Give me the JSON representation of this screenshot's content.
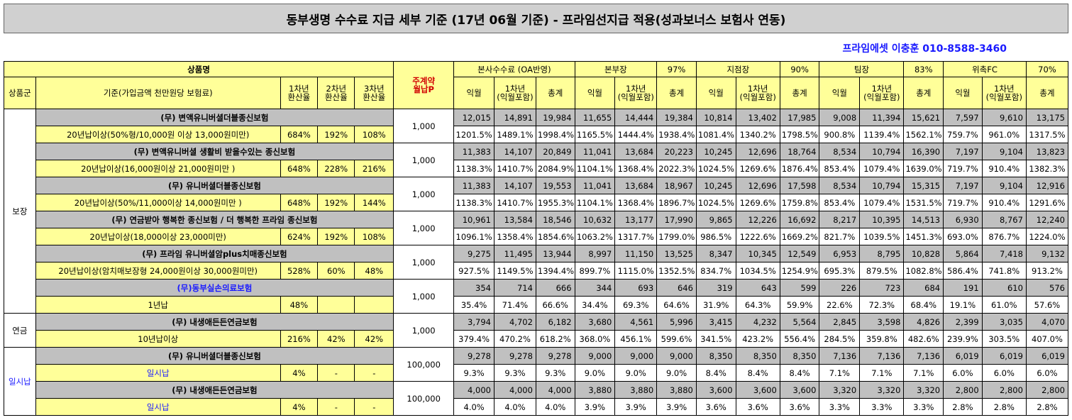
{
  "title": "동부생명 수수료 지급 세부 기준 (17년 06월 기준) - 프라임선지급 적용(성과보너스 보험사 연동)",
  "contact": "프라임에셋 이충훈 010-8588-3460",
  "header": {
    "product_name": "상품명",
    "product_group": "상품군",
    "basis": "기준(가입금액 천만원당 보험료)",
    "rate1": "1차년\n환산율",
    "rate2": "2차년\n환산율",
    "rate3": "3차년\n환산율",
    "main_contract": "주계약\n월납P",
    "sections": [
      {
        "name": "본사수수료 (OA반영)",
        "pct": ""
      },
      {
        "name": "본부장",
        "pct": "97%"
      },
      {
        "name": "지점장",
        "pct": "90%"
      },
      {
        "name": "팀장",
        "pct": "83%"
      },
      {
        "name": "위촉FC",
        "pct": "70%"
      }
    ],
    "sub_cols": [
      "익월",
      "1차년\n(익월포함)",
      "총계"
    ]
  },
  "groups": [
    {
      "name": "보장"
    },
    {
      "name": "연금"
    },
    {
      "name": "일시납"
    }
  ],
  "products": [
    {
      "name": "(무) 변액유니버셜더블종신보험",
      "basis": "20년납이상(50%형/10,000원 이상 13,000원미만)",
      "r1": "684%",
      "r2": "192%",
      "r3": "108%",
      "premium": "1,000",
      "amounts": [
        "12,015",
        "14,891",
        "19,984",
        "11,655",
        "14,444",
        "19,384",
        "10,814",
        "13,402",
        "17,985",
        "9,008",
        "11,394",
        "15,621",
        "7,597",
        "9,610",
        "13,175"
      ],
      "pcts": [
        "1201.5%",
        "1489.1%",
        "1998.4%",
        "1165.5%",
        "1444.4%",
        "1938.4%",
        "1081.4%",
        "1340.2%",
        "1798.5%",
        "900.8%",
        "1139.4%",
        "1562.1%",
        "759.7%",
        "961.0%",
        "1317.5%"
      ]
    },
    {
      "name": "(무) 변액유니버셜 생활비 받을수있는 종신보험",
      "basis": "20년납이상(16,000원이상 21,000원미만 )",
      "r1": "648%",
      "r2": "228%",
      "r3": "216%",
      "premium": "1,000",
      "amounts": [
        "11,383",
        "14,107",
        "20,849",
        "11,041",
        "13,684",
        "20,223",
        "10,245",
        "12,696",
        "18,764",
        "8,534",
        "10,794",
        "16,390",
        "7,197",
        "9,104",
        "13,823"
      ],
      "pcts": [
        "1138.3%",
        "1410.7%",
        "2084.9%",
        "1104.1%",
        "1368.4%",
        "2022.3%",
        "1024.5%",
        "1269.6%",
        "1876.4%",
        "853.4%",
        "1079.4%",
        "1639.0%",
        "719.7%",
        "910.4%",
        "1382.3%"
      ]
    },
    {
      "name": "(무) 유니버셜더블종신보험",
      "basis": "20년납이상(50%/11,000이상 14,000원미만 )",
      "r1": "648%",
      "r2": "192%",
      "r3": "144%",
      "premium": "1,000",
      "amounts": [
        "11,383",
        "14,107",
        "19,553",
        "11,041",
        "13,684",
        "18,967",
        "10,245",
        "12,696",
        "17,598",
        "8,534",
        "10,794",
        "15,315",
        "7,197",
        "9,104",
        "12,916"
      ],
      "pcts": [
        "1138.3%",
        "1410.7%",
        "1955.3%",
        "1104.1%",
        "1368.4%",
        "1896.7%",
        "1024.5%",
        "1269.6%",
        "1759.8%",
        "853.4%",
        "1079.4%",
        "1531.5%",
        "719.7%",
        "910.4%",
        "1291.6%"
      ]
    },
    {
      "name": "(무) 연금받아 행복한 종신보험 / 더 행복한 프라임 종신보험",
      "basis": "20년납이상(18,000이상 23,000미만)",
      "r1": "624%",
      "r2": "192%",
      "r3": "108%",
      "premium": "1,000",
      "amounts": [
        "10,961",
        "13,584",
        "18,546",
        "10,632",
        "13,177",
        "17,990",
        "9,865",
        "12,226",
        "16,692",
        "8,217",
        "10,395",
        "14,513",
        "6,930",
        "8,767",
        "12,240"
      ],
      "pcts": [
        "1096.1%",
        "1358.4%",
        "1854.6%",
        "1063.2%",
        "1317.7%",
        "1799.0%",
        "986.5%",
        "1222.6%",
        "1669.2%",
        "821.7%",
        "1039.5%",
        "1451.3%",
        "693.0%",
        "876.7%",
        "1224.0%"
      ]
    },
    {
      "name": "(무) 프라임 유니버셜암plus치매종신보험",
      "basis": "20년납이상(암치매보장형 24,000원이상 30,000원미만)",
      "r1": "528%",
      "r2": "60%",
      "r3": "48%",
      "premium": "1,000",
      "amounts": [
        "9,275",
        "11,495",
        "13,944",
        "8,997",
        "11,150",
        "13,525",
        "8,347",
        "10,345",
        "12,549",
        "6,953",
        "8,795",
        "10,828",
        "5,864",
        "7,418",
        "9,132"
      ],
      "pcts": [
        "927.5%",
        "1149.5%",
        "1394.4%",
        "899.7%",
        "1115.0%",
        "1352.5%",
        "834.7%",
        "1034.5%",
        "1254.9%",
        "695.3%",
        "879.5%",
        "1082.8%",
        "586.4%",
        "741.8%",
        "913.2%"
      ]
    },
    {
      "name": "(무)동부실손의료보험",
      "basis": "1년납",
      "r1": "48%",
      "r2": "",
      "r3": "",
      "premium": "1,000",
      "amounts": [
        "354",
        "714",
        "666",
        "344",
        "693",
        "646",
        "319",
        "643",
        "599",
        "226",
        "723",
        "684",
        "191",
        "610",
        "576"
      ],
      "pcts": [
        "35.4%",
        "71.4%",
        "66.6%",
        "34.4%",
        "69.3%",
        "64.6%",
        "31.9%",
        "64.3%",
        "59.9%",
        "22.6%",
        "72.3%",
        "68.4%",
        "19.1%",
        "61.0%",
        "57.6%"
      ]
    },
    {
      "name": "(무) 내생애든든연금보험",
      "basis": "10년납이상",
      "r1": "216%",
      "r2": "42%",
      "r3": "42%",
      "premium": "1,000",
      "amounts": [
        "3,794",
        "4,702",
        "6,182",
        "3,680",
        "4,561",
        "5,996",
        "3,415",
        "4,232",
        "5,564",
        "2,845",
        "3,598",
        "4,826",
        "2,399",
        "3,035",
        "4,070"
      ],
      "pcts": [
        "379.4%",
        "470.2%",
        "618.2%",
        "368.0%",
        "456.1%",
        "599.6%",
        "341.5%",
        "423.2%",
        "556.4%",
        "284.5%",
        "359.8%",
        "482.6%",
        "239.9%",
        "303.5%",
        "407.0%"
      ]
    },
    {
      "name": "(무) 유니버셜더블종신보험",
      "basis": "일시납",
      "r1": "4%",
      "r2": "-",
      "r3": "-",
      "premium": "100,000",
      "amounts": [
        "9,278",
        "9,278",
        "9,278",
        "9,000",
        "9,000",
        "9,000",
        "8,350",
        "8,350",
        "8,350",
        "7,136",
        "7,136",
        "7,136",
        "6,019",
        "6,019",
        "6,019"
      ],
      "pcts": [
        "9.3%",
        "9.3%",
        "9.3%",
        "9.0%",
        "9.0%",
        "9.0%",
        "8.4%",
        "8.4%",
        "8.4%",
        "7.1%",
        "7.1%",
        "7.1%",
        "6.0%",
        "6.0%",
        "6.0%"
      ]
    },
    {
      "name": "(무) 내생애든든연금보험",
      "basis": "일시납",
      "r1": "4%",
      "r2": "-",
      "r3": "-",
      "premium": "100,000",
      "amounts": [
        "4,000",
        "4,000",
        "4,000",
        "3,880",
        "3,880",
        "3,880",
        "3,600",
        "3,600",
        "3,600",
        "3,320",
        "3,320",
        "3,320",
        "2,800",
        "2,800",
        "2,800"
      ],
      "pcts": [
        "4.0%",
        "4.0%",
        "4.0%",
        "3.9%",
        "3.9%",
        "3.9%",
        "3.6%",
        "3.6%",
        "3.6%",
        "3.3%",
        "3.3%",
        "3.3%",
        "2.8%",
        "2.8%",
        "2.8%"
      ]
    }
  ]
}
